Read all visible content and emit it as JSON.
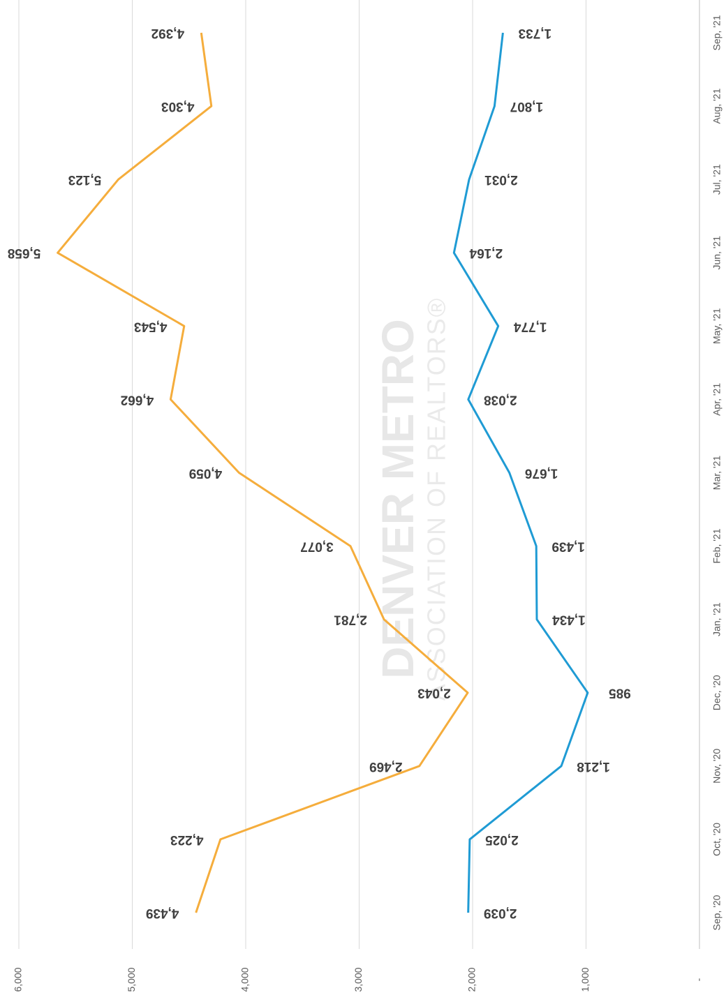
{
  "watermark": {
    "line1": "DENVER METRO",
    "line2": "ASSOCIATION OF REALTORS®"
  },
  "chart_data": {
    "type": "line",
    "categories": [
      "Sep, '20",
      "Oct, '20",
      "Nov, '20",
      "Dec, '20",
      "Jan, '21",
      "Feb, '21",
      "Mar, '21",
      "Apr, '21",
      "May, '21",
      "Jun, '21",
      "Jul, '21",
      "Aug, '21",
      "Sep, '21"
    ],
    "series": [
      {
        "color": "#f5ad3c",
        "values": [
          4439,
          4223,
          2469,
          2043,
          2781,
          3077,
          4059,
          4662,
          4543,
          5658,
          5123,
          4303,
          4392
        ],
        "value_labels": [
          "4,439",
          "4,223",
          "2,469",
          "2,043",
          "2,781",
          "3,077",
          "4,059",
          "4,662",
          "4,543",
          "5,658",
          "5,123",
          "4,303",
          "4,392"
        ]
      },
      {
        "color": "#1f9bd4",
        "values": [
          2039,
          2025,
          1218,
          985,
          1434,
          1439,
          1676,
          2038,
          1774,
          2164,
          2031,
          1807,
          1733
        ],
        "value_labels": [
          "2,039",
          "2,025",
          "1,218",
          "985",
          "1,434",
          "1,439",
          "1,676",
          "2,038",
          "1,774",
          "2,164",
          "2,031",
          "1,807",
          "1,733"
        ]
      }
    ],
    "ylim": [
      0,
      6000
    ],
    "yticks": [
      {
        "value": 0,
        "label": "-"
      },
      {
        "value": 1000,
        "label": "1,000"
      },
      {
        "value": 2000,
        "label": "2,000"
      },
      {
        "value": 3000,
        "label": "3,000"
      },
      {
        "value": 4000,
        "label": "4,000"
      },
      {
        "value": 5000,
        "label": "5,000"
      },
      {
        "value": 6000,
        "label": "6,000"
      }
    ],
    "grid": true
  }
}
